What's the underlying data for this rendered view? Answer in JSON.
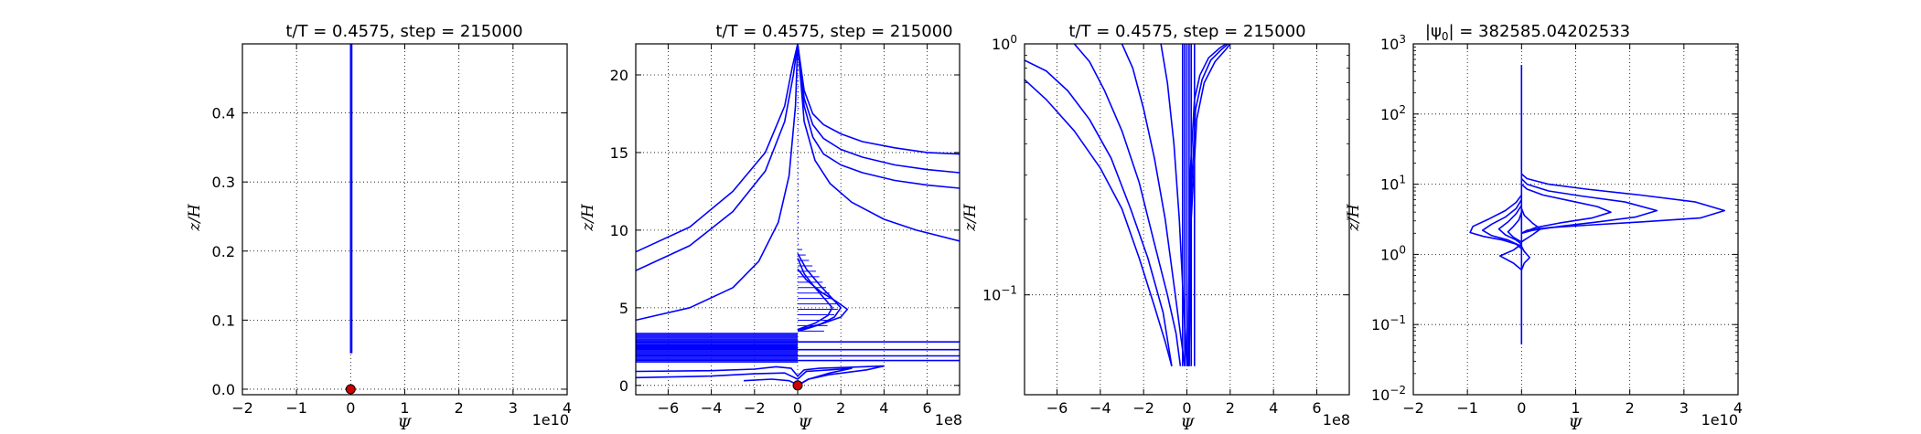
{
  "chart_data": [
    {
      "type": "line",
      "title": "t/T = 0.4575, step = 215000",
      "xlabel": "Ψ",
      "ylabel": "z/H",
      "x_offset_text": "1e10",
      "xlim": [
        -2,
        4
      ],
      "ylim": [
        -0.008,
        0.5
      ],
      "y_scale": "linear",
      "grid": true,
      "x_ticks": [
        "−2",
        "−1",
        "0",
        "1",
        "2",
        "3",
        "4"
      ],
      "y_ticks": [
        "0.0",
        "0.1",
        "0.2",
        "0.3",
        "0.4"
      ],
      "series": [
        {
          "color": "#0000ff",
          "x": [
            0,
            0
          ],
          "y": [
            0.052,
            0.5
          ]
        },
        {
          "color": "#0000ff",
          "x": [
            0.02,
            0.02
          ],
          "y": [
            0.052,
            0.5
          ]
        }
      ],
      "markers": [
        {
          "x": 0,
          "y": 0,
          "color": "#cc0000"
        }
      ]
    },
    {
      "type": "line",
      "title": "t/T = 0.4575, step = 215000",
      "xlabel": "Ψ",
      "ylabel": "z/H",
      "x_offset_text": "1e8",
      "xlim": [
        -7.5,
        7.5
      ],
      "ylim": [
        -0.6,
        22
      ],
      "y_scale": "linear",
      "grid": true,
      "x_ticks": [
        "−6",
        "−4",
        "−2",
        "0",
        "2",
        "4",
        "6"
      ],
      "y_ticks": [
        "0",
        "5",
        "10",
        "15",
        "20"
      ],
      "series": [
        {
          "color": "#0000ff",
          "x": [
            -7.5,
            -5,
            -3,
            -1.5,
            -0.6,
            -0.25,
            0
          ],
          "y": [
            8.6,
            10.2,
            12.5,
            15,
            18,
            20.5,
            22
          ]
        },
        {
          "color": "#0000ff",
          "x": [
            -7.5,
            -5,
            -3,
            -1.5,
            -0.6,
            -0.2,
            0
          ],
          "y": [
            7.4,
            9.0,
            11.2,
            13.8,
            17,
            20,
            22
          ]
        },
        {
          "color": "#0000ff",
          "x": [
            -7.5,
            -5,
            -3,
            -1.8,
            -0.9,
            -0.4,
            -0.1,
            0
          ],
          "y": [
            4.2,
            5.0,
            6.3,
            8.0,
            10.5,
            13.5,
            18,
            22
          ]
        },
        {
          "color": "#0000ff",
          "x": [
            0,
            0.3,
            0.7,
            1.2,
            2,
            3,
            4.5,
            6,
            7.5
          ],
          "y": [
            22,
            19,
            17.5,
            16.8,
            16.2,
            15.7,
            15.3,
            15.0,
            14.9
          ]
        },
        {
          "color": "#0000ff",
          "x": [
            0,
            0.3,
            0.7,
            1.2,
            2,
            3,
            4.5,
            6,
            7.5
          ],
          "y": [
            22,
            18.5,
            16.8,
            15.9,
            15.2,
            14.7,
            14.2,
            13.9,
            13.7
          ]
        },
        {
          "color": "#0000ff",
          "x": [
            0,
            0.3,
            0.7,
            1.2,
            2,
            3,
            4.5,
            6,
            7.5
          ],
          "y": [
            22,
            18,
            16,
            14.9,
            14.2,
            13.7,
            13.2,
            12.9,
            12.7
          ]
        },
        {
          "color": "#0000ff",
          "x": [
            0,
            0.3,
            0.8,
            1.5,
            2.5,
            4,
            5.5,
            7.5
          ],
          "y": [
            22,
            17,
            14.5,
            13,
            11.8,
            10.7,
            10,
            9.3
          ]
        },
        {
          "color": "#0000ff",
          "x": [
            0,
            0.4,
            1.0,
            1.6,
            2.0,
            1.7,
            1.0,
            0.3,
            0
          ],
          "y": [
            8.5,
            7.5,
            6.5,
            5.6,
            5.0,
            4.4,
            3.9,
            3.6,
            3.5
          ]
        },
        {
          "color": "#0000ff",
          "x": [
            0,
            0.4,
            1.1,
            1.8,
            2.3,
            2.0,
            1.2,
            0.4,
            0
          ],
          "y": [
            7.5,
            6.8,
            6.0,
            5.4,
            4.9,
            4.4,
            4.0,
            3.7,
            3.6
          ]
        },
        {
          "color": "#0000ff",
          "x": [
            0,
            0.3,
            0.8,
            1.3,
            1.6,
            1.4,
            0.8,
            0.2,
            0
          ],
          "y": [
            8.2,
            7.2,
            6.3,
            5.5,
            5.0,
            4.5,
            4.0,
            3.7,
            3.6
          ]
        },
        {
          "color": "#0000ff",
          "x": [
            -7.5,
            0,
            7.5
          ],
          "y": [
            2.8,
            2.8,
            2.8
          ]
        },
        {
          "color": "#0000ff",
          "x": [
            -7.5,
            0,
            7.5
          ],
          "y": [
            2.3,
            2.3,
            2.3
          ]
        },
        {
          "color": "#0000ff",
          "x": [
            -7.5,
            0,
            7.5
          ],
          "y": [
            1.9,
            1.9,
            1.9
          ]
        },
        {
          "color": "#0000ff",
          "x": [
            -7.5,
            0,
            7.5
          ],
          "y": [
            1.6,
            1.6,
            1.6
          ]
        },
        {
          "color": "#0000ff",
          "x": [
            -7.5,
            -4,
            -2,
            -1,
            -0.3,
            0,
            0.3,
            1,
            2,
            3,
            4,
            3.2,
            1.5,
            0.5,
            0
          ],
          "y": [
            0.9,
            0.95,
            1.05,
            1.2,
            1.1,
            0.6,
            1.0,
            1.1,
            1.15,
            1.2,
            1.25,
            1.0,
            0.7,
            0.4,
            0
          ]
        },
        {
          "color": "#0000ff",
          "x": [
            -7.5,
            -4,
            -2,
            -0.6,
            0,
            0.4,
            1.5,
            2.5,
            1.5,
            0.5,
            0
          ],
          "y": [
            0.5,
            0.6,
            0.75,
            0.8,
            0.4,
            0.9,
            1.0,
            1.1,
            0.8,
            0.4,
            0
          ]
        },
        {
          "color": "#0000ff",
          "x": [
            -2.5,
            -1.2,
            -0.4,
            0
          ],
          "y": [
            0.3,
            0.4,
            0.3,
            0.05
          ]
        }
      ],
      "markers": [
        {
          "x": 0,
          "y": 0,
          "color": "#cc0000"
        }
      ]
    },
    {
      "type": "line",
      "title": "t/T = 0.4575, step = 215000",
      "xlabel": "Ψ",
      "ylabel": "z/H",
      "x_offset_text": "1e8",
      "xlim": [
        -7.5,
        7.5
      ],
      "ylim": [
        0.04,
        1
      ],
      "y_scale": "log",
      "grid": true,
      "x_ticks": [
        "−6",
        "−4",
        "−2",
        "0",
        "2",
        "4",
        "6"
      ],
      "y_ticks": [
        {
          "value": 0.1,
          "base": "10",
          "exp": "−1"
        },
        {
          "value": 1,
          "base": "10",
          "exp": "0"
        }
      ],
      "series": [
        {
          "color": "#0000ff",
          "x": [
            -7.5,
            -6.5,
            -5.2,
            -4,
            -3,
            -2.2,
            -1.5,
            -1.0,
            -0.7
          ],
          "y": [
            0.72,
            0.6,
            0.45,
            0.32,
            0.22,
            0.14,
            0.09,
            0.065,
            0.052
          ]
        },
        {
          "color": "#0000ff",
          "x": [
            -7.5,
            -6.5,
            -5.5,
            -4.5,
            -3.5,
            -2.6,
            -1.8,
            -1.1,
            -0.7
          ],
          "y": [
            0.86,
            0.78,
            0.65,
            0.5,
            0.35,
            0.22,
            0.14,
            0.085,
            0.052
          ]
        },
        {
          "color": "#0000ff",
          "x": [
            -5.2,
            -4.5,
            -3.8,
            -3.0,
            -2.2,
            -1.5,
            -0.9,
            -0.5,
            -0.3
          ],
          "y": [
            1.0,
            0.85,
            0.65,
            0.45,
            0.28,
            0.16,
            0.1,
            0.07,
            0.052
          ]
        },
        {
          "color": "#0000ff",
          "x": [
            -3.0,
            -2.5,
            -2.0,
            -1.5,
            -1.0,
            -0.6,
            -0.3,
            -0.1
          ],
          "y": [
            1.0,
            0.8,
            0.55,
            0.35,
            0.2,
            0.11,
            0.07,
            0.052
          ]
        },
        {
          "color": "#0000ff",
          "x": [
            -1.2,
            -0.9,
            -0.6,
            -0.35,
            -0.15,
            0
          ],
          "y": [
            1.0,
            0.7,
            0.4,
            0.2,
            0.09,
            0.052
          ]
        },
        {
          "color": "#0000ff",
          "x": [
            -0.2,
            -0.2
          ],
          "y": [
            0.052,
            1.0
          ]
        },
        {
          "color": "#0000ff",
          "x": [
            -0.1,
            -0.1
          ],
          "y": [
            0.052,
            1.0
          ]
        },
        {
          "color": "#0000ff",
          "x": [
            0,
            0
          ],
          "y": [
            0.052,
            1.0
          ]
        },
        {
          "color": "#0000ff",
          "x": [
            0.1,
            0.1
          ],
          "y": [
            0.052,
            1.0
          ]
        },
        {
          "color": "#0000ff",
          "x": [
            0.2,
            0.2
          ],
          "y": [
            0.052,
            1.0
          ]
        },
        {
          "color": "#0000ff",
          "x": [
            0.35,
            0.35
          ],
          "y": [
            0.052,
            1.0
          ]
        },
        {
          "color": "#0000ff",
          "x": [
            0.1,
            0.2,
            0.45,
            0.8,
            1.3,
            1.8,
            2.0
          ],
          "y": [
            0.052,
            0.2,
            0.5,
            0.7,
            0.85,
            0.95,
            1.0
          ]
        },
        {
          "color": "#0000ff",
          "x": [
            0.1,
            0.2,
            0.4,
            0.7,
            1.1,
            1.6,
            1.9
          ],
          "y": [
            0.052,
            0.25,
            0.55,
            0.72,
            0.86,
            0.95,
            1.0
          ]
        },
        {
          "color": "#0000ff",
          "x": [
            0.05,
            0.15,
            0.35,
            0.6,
            1.0,
            1.5,
            1.8
          ],
          "y": [
            0.052,
            0.3,
            0.6,
            0.75,
            0.88,
            0.96,
            1.0
          ]
        }
      ],
      "markers": []
    },
    {
      "type": "line",
      "title": "|ψ0| = 382585.04202533",
      "title_parts": {
        "left": "|ψ",
        "sub": "0",
        "right": "| = 382585.04202533"
      },
      "xlabel": "Ψ",
      "ylabel": "z/H",
      "x_offset_text": "1e10",
      "xlim": [
        -2,
        4
      ],
      "ylim": [
        0.01,
        1000
      ],
      "y_scale": "log",
      "grid": true,
      "x_ticks": [
        "−2",
        "−1",
        "0",
        "1",
        "2",
        "3",
        "4"
      ],
      "y_ticks": [
        {
          "value": 0.01,
          "base": "10",
          "exp": "−2"
        },
        {
          "value": 0.1,
          "base": "10",
          "exp": "−1"
        },
        {
          "value": 1,
          "base": "10",
          "exp": "0"
        },
        {
          "value": 10,
          "base": "10",
          "exp": "1"
        },
        {
          "value": 100,
          "base": "10",
          "exp": "2"
        },
        {
          "value": 1000,
          "base": "10",
          "exp": "3"
        }
      ],
      "series": [
        {
          "color": "#0000ff",
          "x": [
            0,
            0
          ],
          "y": [
            0.052,
            500
          ]
        },
        {
          "color": "#0000ff",
          "x": [
            0,
            0.1,
            0.5,
            1.2,
            2.2,
            3.2,
            3.75,
            3.3,
            2.2,
            1.2,
            0.5,
            0.1,
            0
          ],
          "y": [
            14,
            12,
            10,
            8.5,
            7,
            5.6,
            4.2,
            3.3,
            2.9,
            2.6,
            2.4,
            2.2,
            2.0
          ]
        },
        {
          "color": "#0000ff",
          "x": [
            0,
            0.1,
            0.5,
            1.1,
            1.9,
            2.5,
            2.1,
            1.4,
            0.7,
            0.2,
            0
          ],
          "y": [
            12,
            10,
            8,
            6.8,
            5.6,
            4.2,
            3.4,
            2.9,
            2.5,
            2.2,
            2.0
          ]
        },
        {
          "color": "#0000ff",
          "x": [
            0,
            0.1,
            0.4,
            0.9,
            1.4,
            1.65,
            1.3,
            0.7,
            0.25,
            0
          ],
          "y": [
            10,
            8.5,
            7,
            5.8,
            4.8,
            4.0,
            3.3,
            2.8,
            2.4,
            2.0
          ]
        },
        {
          "color": "#0000ff",
          "x": [
            0,
            -0.1,
            -0.3,
            -0.6,
            -0.9,
            -0.95,
            -0.7,
            -0.35,
            -0.1,
            0
          ],
          "y": [
            7,
            5.5,
            4.2,
            3.2,
            2.5,
            2.05,
            1.8,
            1.6,
            1.4,
            1.2
          ]
        },
        {
          "color": "#0000ff",
          "x": [
            0,
            -0.1,
            -0.3,
            -0.55,
            -0.72,
            -0.55,
            -0.25,
            0
          ],
          "y": [
            6,
            4.5,
            3.4,
            2.7,
            2.2,
            1.85,
            1.6,
            1.3
          ]
        },
        {
          "color": "#0000ff",
          "x": [
            0,
            -0.1,
            -0.25,
            -0.42,
            -0.3,
            -0.1,
            0
          ],
          "y": [
            5,
            3.8,
            2.9,
            2.3,
            1.9,
            1.6,
            1.4
          ]
        },
        {
          "color": "#0000ff",
          "x": [
            0,
            -0.05,
            -0.15,
            -0.25,
            -0.15,
            0
          ],
          "y": [
            4,
            3.1,
            2.5,
            2.1,
            1.75,
            1.5
          ]
        },
        {
          "color": "#0000ff",
          "x": [
            0,
            0.05,
            0.2,
            0.35,
            0.2,
            0.05,
            0
          ],
          "y": [
            4.5,
            3.6,
            2.8,
            2.3,
            1.9,
            1.6,
            1.5
          ]
        },
        {
          "color": "#0000ff",
          "x": [
            0,
            -0.15,
            -0.4,
            -0.15,
            0
          ],
          "y": [
            1.4,
            1.15,
            0.95,
            0.75,
            0.6
          ]
        },
        {
          "color": "#0000ff",
          "x": [
            0,
            0.05,
            0.15,
            0.05,
            0
          ],
          "y": [
            1.3,
            1.1,
            0.9,
            0.75,
            0.6
          ]
        }
      ],
      "markers": []
    }
  ]
}
